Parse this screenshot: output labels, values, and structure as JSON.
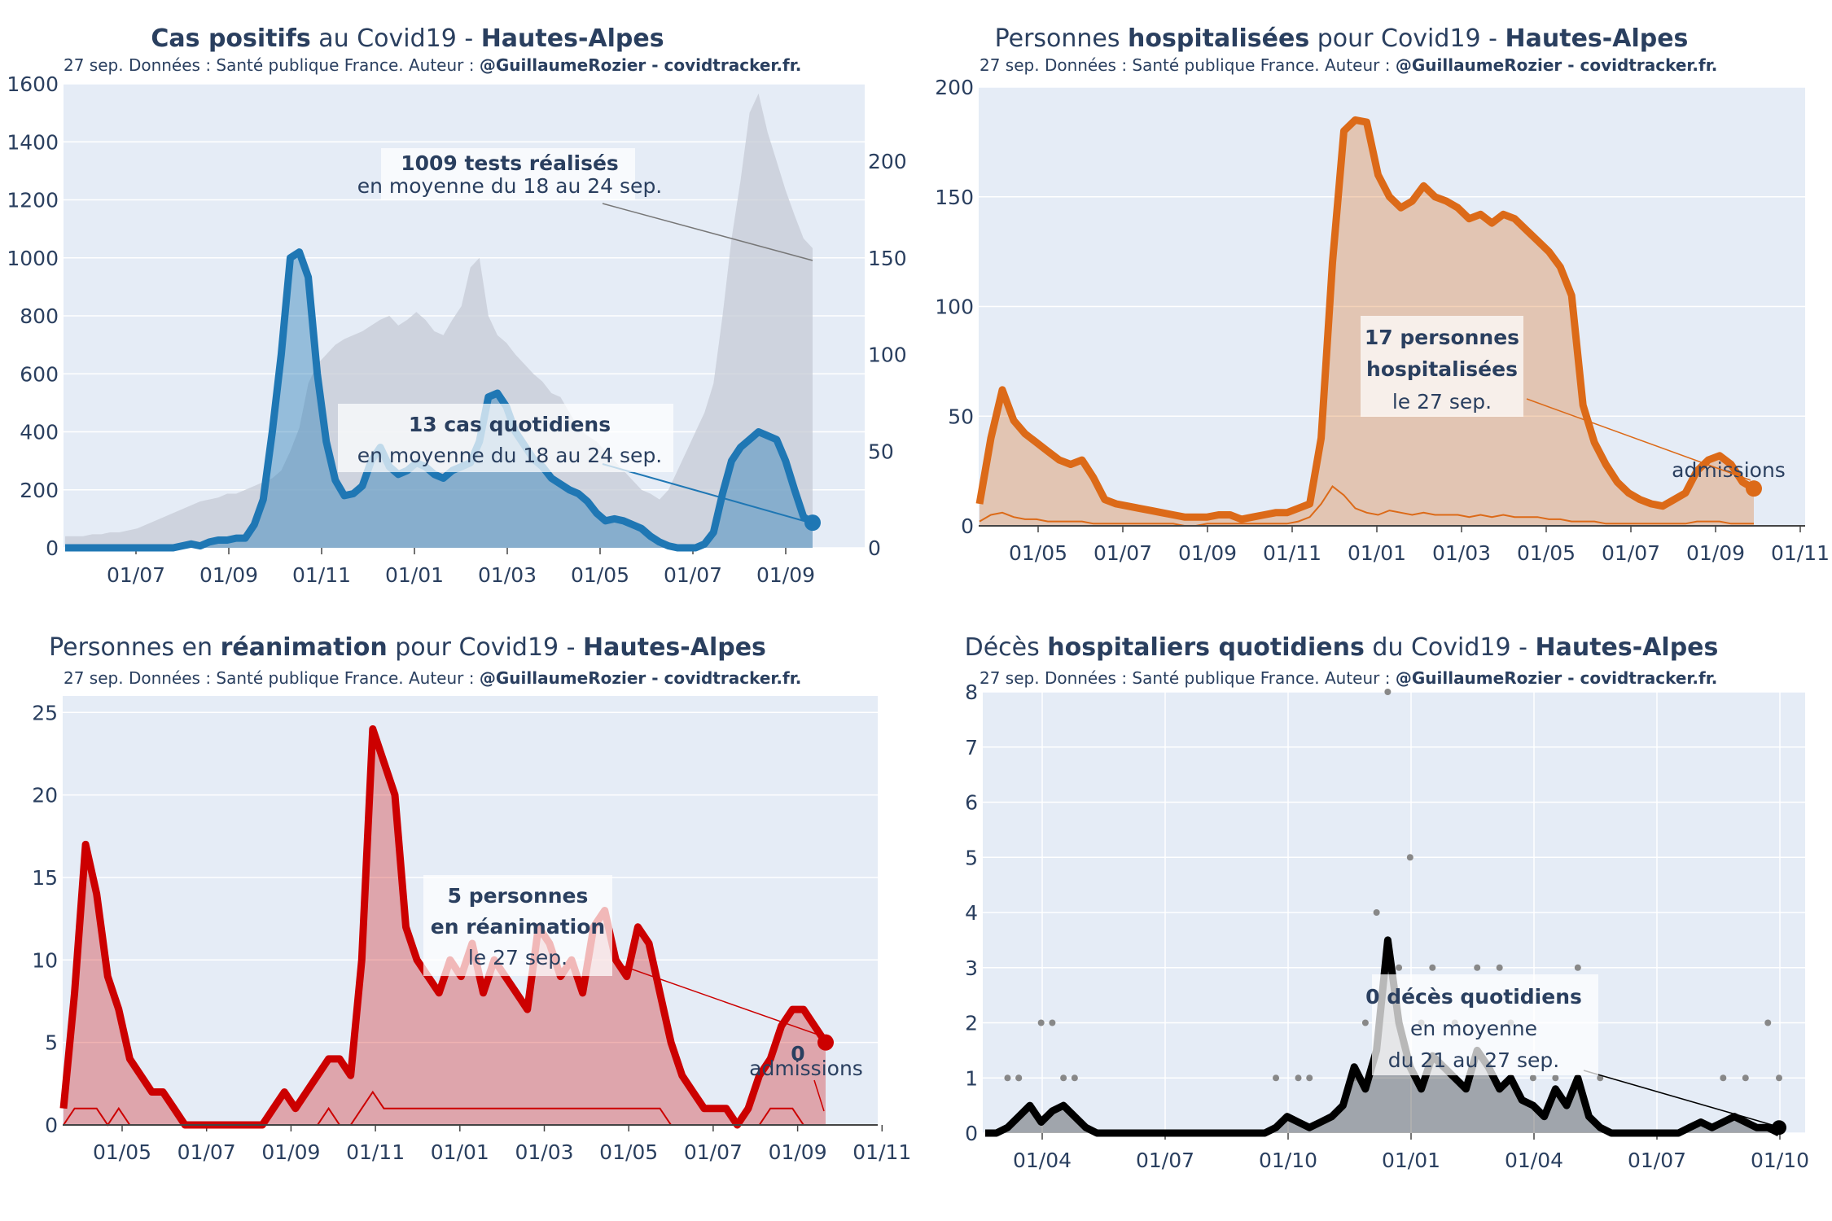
{
  "common": {
    "subtitle_prefix": "27 sep. Données : Santé publique France. Auteur : ",
    "subtitle_author": "@GuillaumeRozier - covidtracker.fr."
  },
  "panels": [
    {
      "id": "cas",
      "title_bold": "Cas positifs",
      "title_rest": " au Covid19 - ",
      "title_region": "Hautes-Alpes",
      "annotation_main_bold": "13 cas quotidiens",
      "annotation_main_rest": "en moyenne du 18 au 24 sep.",
      "annotation_tests_bold": "1009 tests réalisés",
      "annotation_tests_rest": "en moyenne du 18 au 24 sep."
    },
    {
      "id": "hosp",
      "title_pre": "Personnes ",
      "title_bold": "hospitalisées",
      "title_rest": " pour Covid19 - ",
      "title_region": "Hautes-Alpes",
      "annotation_line1": "17 personnes",
      "annotation_line2": "hospitalisées",
      "annotation_line3": "le 27 sep.",
      "small_label": "admissions"
    },
    {
      "id": "rea",
      "title_pre": "Personnes en ",
      "title_bold": "réanimation",
      "title_rest": " pour Covid19 - ",
      "title_region": "Hautes-Alpes",
      "annotation_line1": "5 personnes",
      "annotation_line2": "en réanimation",
      "annotation_line3": "le 27 sep.",
      "small_value": "0",
      "small_label": "admissions"
    },
    {
      "id": "deces",
      "title_pre": "Décès ",
      "title_bold": "hospitaliers quotidiens",
      "title_rest": " du Covid19 - ",
      "title_region": "Hautes-Alpes",
      "annotation_line1": "0 décès quotidiens",
      "annotation_line2": "en moyenne",
      "annotation_line3": "du 21 au 27 sep."
    }
  ],
  "chart_data": [
    {
      "type": "line",
      "title": "Cas positifs au Covid19 - Hautes-Alpes",
      "x_ticks": [
        "01/07",
        "01/09",
        "01/11",
        "01/01",
        "01/03",
        "01/05",
        "01/07",
        "01/09"
      ],
      "y_ticks_left": [
        "0",
        "200",
        "400",
        "600",
        "800",
        "1000",
        "1200",
        "1400",
        "1600"
      ],
      "y_ticks_right": [
        "0",
        "50",
        "100",
        "150",
        "200"
      ],
      "ylim_left": [
        0,
        1600
      ],
      "ylim_right": [
        0,
        240
      ],
      "series": [
        {
          "name": "cas positifs (moyenne 7j)",
          "axis": "right",
          "color": "#1f77b4",
          "values": [
            0,
            0,
            0,
            0,
            0,
            0,
            0,
            0,
            0,
            0,
            0,
            0,
            0,
            1,
            2,
            1,
            3,
            4,
            4,
            5,
            5,
            12,
            25,
            60,
            100,
            150,
            153,
            140,
            90,
            55,
            35,
            27,
            28,
            32,
            45,
            52,
            42,
            38,
            40,
            44,
            42,
            38,
            36,
            40,
            42,
            44,
            55,
            78,
            80,
            73,
            60,
            53,
            46,
            42,
            36,
            33,
            30,
            28,
            24,
            18,
            14,
            15,
            14,
            12,
            10,
            6,
            3,
            1,
            0,
            0,
            0,
            2,
            8,
            28,
            45,
            52,
            56,
            60,
            58,
            56,
            45,
            30,
            16,
            13
          ]
        },
        {
          "name": "tests réalisés",
          "axis": "right",
          "color": "#c5cbd6",
          "values": [
            6,
            6,
            6,
            7,
            7,
            8,
            8,
            9,
            10,
            12,
            14,
            16,
            18,
            20,
            22,
            24,
            25,
            26,
            28,
            28,
            30,
            32,
            34,
            36,
            40,
            50,
            62,
            85,
            95,
            100,
            105,
            108,
            110,
            112,
            115,
            118,
            120,
            115,
            118,
            122,
            118,
            112,
            110,
            118,
            125,
            145,
            150,
            120,
            110,
            106,
            100,
            95,
            90,
            86,
            80,
            78,
            70,
            62,
            58,
            55,
            50,
            45,
            40,
            35,
            30,
            28,
            25,
            30,
            40,
            50,
            60,
            70,
            85,
            120,
            160,
            190,
            225,
            235,
            215,
            200,
            185,
            172,
            160,
            155
          ]
        }
      ]
    },
    {
      "type": "area",
      "title": "Personnes hospitalisées pour Covid19 - Hautes-Alpes",
      "x_ticks": [
        "01/05",
        "01/07",
        "01/09",
        "01/11",
        "01/01",
        "01/03",
        "01/05",
        "01/07",
        "01/09",
        "01/11"
      ],
      "y_ticks": [
        "0",
        "50",
        "100",
        "150",
        "200"
      ],
      "ylim": [
        0,
        200
      ],
      "series": [
        {
          "name": "hospitalisations",
          "color": "#dc6a18",
          "values": [
            10,
            40,
            62,
            48,
            42,
            38,
            34,
            30,
            28,
            30,
            22,
            12,
            10,
            9,
            8,
            7,
            6,
            5,
            4,
            4,
            4,
            5,
            5,
            3,
            4,
            5,
            6,
            6,
            8,
            10,
            40,
            120,
            180,
            185,
            184,
            160,
            150,
            145,
            148,
            155,
            150,
            148,
            145,
            140,
            142,
            138,
            142,
            140,
            135,
            130,
            125,
            118,
            105,
            55,
            38,
            28,
            20,
            15,
            12,
            10,
            9,
            12,
            15,
            25,
            30,
            32,
            28,
            20,
            17
          ]
        },
        {
          "name": "admissions",
          "color": "#dc6a18",
          "values": [
            2,
            5,
            6,
            4,
            3,
            3,
            2,
            2,
            2,
            2,
            1,
            1,
            1,
            1,
            1,
            1,
            1,
            1,
            0,
            0,
            1,
            1,
            1,
            1,
            1,
            1,
            1,
            1,
            2,
            4,
            10,
            18,
            14,
            8,
            6,
            5,
            7,
            6,
            5,
            6,
            5,
            5,
            5,
            4,
            5,
            4,
            5,
            4,
            4,
            4,
            3,
            3,
            2,
            2,
            2,
            1,
            1,
            1,
            1,
            1,
            1,
            1,
            1,
            2,
            2,
            2,
            1,
            1,
            1
          ]
        }
      ]
    },
    {
      "type": "area",
      "title": "Personnes en réanimation pour Covid19 - Hautes-Alpes",
      "x_ticks": [
        "01/05",
        "01/07",
        "01/09",
        "01/11",
        "01/01",
        "01/03",
        "01/05",
        "01/07",
        "01/09",
        "01/11"
      ],
      "y_ticks": [
        "0",
        "5",
        "10",
        "15",
        "20",
        "25"
      ],
      "ylim": [
        0,
        26
      ],
      "series": [
        {
          "name": "réanimations",
          "color": "#cc0000",
          "values": [
            1,
            8,
            17,
            14,
            9,
            7,
            4,
            3,
            2,
            2,
            1,
            0,
            0,
            0,
            0,
            0,
            0,
            0,
            0,
            1,
            2,
            1,
            2,
            3,
            4,
            4,
            3,
            10,
            24,
            22,
            20,
            12,
            10,
            9,
            8,
            10,
            9,
            11,
            8,
            10,
            9,
            8,
            7,
            12,
            11,
            9,
            10,
            8,
            12,
            13,
            10,
            9,
            12,
            11,
            8,
            5,
            3,
            2,
            1,
            1,
            1,
            0,
            1,
            3,
            4,
            6,
            7,
            7,
            6,
            5
          ]
        },
        {
          "name": "admissions",
          "color": "#cc0000",
          "values": [
            0,
            1,
            1,
            1,
            0,
            1,
            0,
            0,
            0,
            0,
            0,
            0,
            0,
            0,
            0,
            0,
            0,
            0,
            0,
            0,
            0,
            0,
            0,
            0,
            1,
            0,
            0,
            1,
            2,
            1,
            1,
            1,
            1,
            1,
            1,
            1,
            1,
            1,
            1,
            1,
            1,
            1,
            1,
            1,
            1,
            1,
            1,
            1,
            1,
            1,
            1,
            1,
            1,
            1,
            1,
            0,
            0,
            0,
            0,
            0,
            0,
            0,
            0,
            0,
            1,
            1,
            1,
            0,
            0,
            0
          ]
        }
      ]
    },
    {
      "type": "line",
      "title": "Décès hospitaliers quotidiens du Covid19 - Hautes-Alpes",
      "x_ticks": [
        "01/04",
        "01/07",
        "01/10",
        "01/01",
        "01/04",
        "01/07",
        "01/10"
      ],
      "y_ticks": [
        "0",
        "1",
        "2",
        "3",
        "4",
        "5",
        "6",
        "7",
        "8"
      ],
      "ylim": [
        0,
        8
      ],
      "series": [
        {
          "name": "décès (moyenne 7j)",
          "color": "#000000",
          "values": [
            0,
            0,
            0.1,
            0.3,
            0.5,
            0.2,
            0.4,
            0.5,
            0.3,
            0.1,
            0,
            0,
            0,
            0,
            0,
            0,
            0,
            0,
            0,
            0,
            0,
            0,
            0,
            0,
            0,
            0,
            0.1,
            0.3,
            0.2,
            0.1,
            0.2,
            0.3,
            0.5,
            1.2,
            0.8,
            1.5,
            3.5,
            2.0,
            1.2,
            0.8,
            1.4,
            1.2,
            1.0,
            0.8,
            1.5,
            1.2,
            0.8,
            1.0,
            0.6,
            0.5,
            0.3,
            0.8,
            0.5,
            1.0,
            0.3,
            0.1,
            0,
            0,
            0,
            0,
            0,
            0,
            0,
            0.1,
            0.2,
            0.1,
            0.2,
            0.3,
            0.2,
            0.1,
            0.1,
            0
          ]
        },
        {
          "name": "décès quotidiens",
          "color": "#888888",
          "points": [
            [
              2,
              1
            ],
            [
              3,
              1
            ],
            [
              3,
              1
            ],
            [
              5,
              2
            ],
            [
              6,
              2
            ],
            [
              7,
              1
            ],
            [
              8,
              1
            ],
            [
              26,
              1
            ],
            [
              28,
              1
            ],
            [
              29,
              1
            ],
            [
              33,
              1
            ],
            [
              34,
              2
            ],
            [
              35,
              4
            ],
            [
              36,
              8
            ],
            [
              37,
              3
            ],
            [
              38,
              5
            ],
            [
              39,
              2
            ],
            [
              40,
              3
            ],
            [
              42,
              2
            ],
            [
              44,
              3
            ],
            [
              46,
              3
            ],
            [
              47,
              2
            ],
            [
              49,
              1
            ],
            [
              51,
              1
            ],
            [
              53,
              3
            ],
            [
              55,
              1
            ],
            [
              66,
              1
            ],
            [
              68,
              1
            ],
            [
              70,
              2
            ],
            [
              71,
              1
            ]
          ]
        }
      ]
    }
  ]
}
